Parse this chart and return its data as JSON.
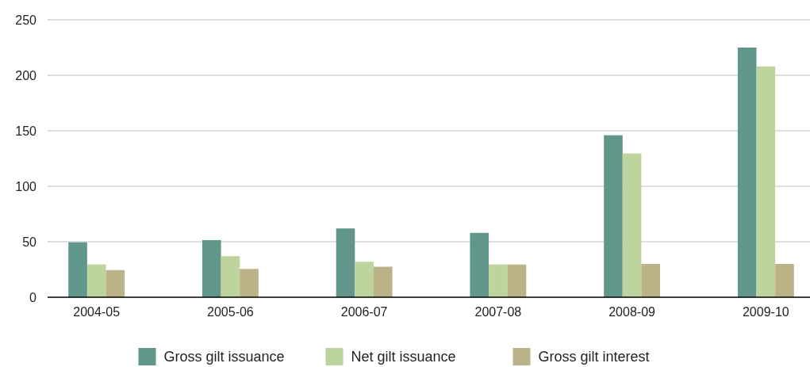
{
  "chart_data": {
    "type": "bar",
    "categories": [
      "2004-05",
      "2005-06",
      "2006-07",
      "2007-08",
      "2008-09",
      "2009-10"
    ],
    "series": [
      {
        "name": "Gross gilt issuance",
        "color": "#61968b",
        "values": [
          49.5,
          51.5,
          62,
          58,
          146,
          225
        ]
      },
      {
        "name": "Net gilt issuance",
        "color": "#bdd49f",
        "values": [
          29.5,
          37,
          32,
          29.5,
          129.5,
          208
        ]
      },
      {
        "name": "Gross gilt interest",
        "color": "#bbb288",
        "values": [
          24.5,
          25.5,
          27.5,
          29.5,
          30,
          30
        ]
      }
    ],
    "ylim": [
      0,
      250
    ],
    "yticks": [
      0,
      50,
      100,
      150,
      200,
      250
    ],
    "grid": "y",
    "legend": "bottom"
  }
}
